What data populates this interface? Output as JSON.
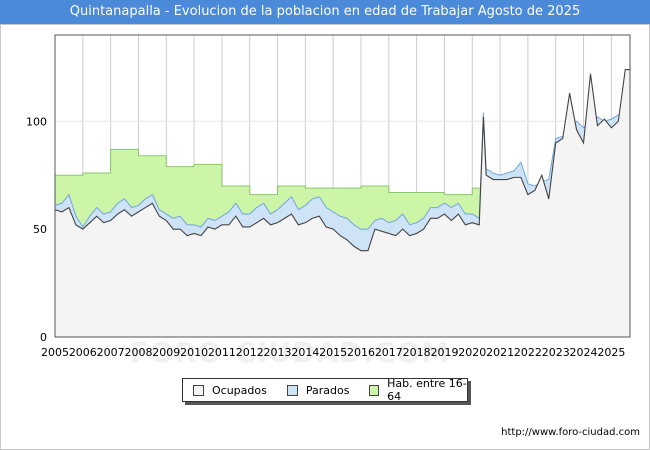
{
  "title": "Quintanapalla - Evolucion de la poblacion en edad de Trabajar Agosto de 2025",
  "source": "http://www.foro-ciudad.com",
  "watermark": "FORO-CIUDAD.COM",
  "colors": {
    "header": "#4a8ad8",
    "hab_fill": "#ccf5a8",
    "hab_line": "#8bc56f",
    "parados_fill": "#cfe3f7",
    "parados_line": "#6ea6e2",
    "ocupados_fill": "#f4f4f4",
    "ocupados_line": "#444444",
    "grid": "#cccccc"
  },
  "chart_data": {
    "type": "area",
    "title": "Quintanapalla - Evolucion de la poblacion en edad de Trabajar Agosto de 2025",
    "xlim": [
      2005,
      2025.67
    ],
    "ylim": [
      0,
      140
    ],
    "yticks": [
      0,
      50,
      100
    ],
    "xticks": [
      "2005",
      "2006",
      "2007",
      "2008",
      "2009",
      "2010",
      "2011",
      "2012",
      "2013",
      "2014",
      "2015",
      "2016",
      "2017",
      "2018",
      "2019",
      "2020",
      "2021",
      "2022",
      "2023",
      "2024",
      "2025"
    ],
    "legend": [
      "Ocupados",
      "Parados",
      "Hab. entre 16-64"
    ],
    "legend_position": "bottom-center",
    "series": [
      {
        "name": "Hab. entre 16-64",
        "step": true,
        "x": [
          2005,
          2006,
          2007,
          2008,
          2009,
          2010,
          2011,
          2012,
          2013,
          2014,
          2015,
          2016,
          2017,
          2018,
          2019,
          2020,
          2020.3,
          2020.6,
          2021,
          2022,
          2023,
          2024,
          2025
        ],
        "values": [
          75,
          76,
          87,
          84,
          79,
          80,
          70,
          66,
          70,
          69,
          69,
          70,
          67,
          67,
          66,
          69,
          69,
          null,
          null,
          null,
          null,
          null,
          null
        ]
      },
      {
        "name": "Parados",
        "x": [
          2005,
          2005.25,
          2005.5,
          2005.75,
          2006,
          2006.25,
          2006.5,
          2006.75,
          2007,
          2007.25,
          2007.5,
          2007.75,
          2008,
          2008.25,
          2008.5,
          2008.75,
          2009,
          2009.25,
          2009.5,
          2009.75,
          2010,
          2010.25,
          2010.5,
          2010.75,
          2011,
          2011.25,
          2011.5,
          2011.75,
          2012,
          2012.25,
          2012.5,
          2012.75,
          2013,
          2013.25,
          2013.5,
          2013.75,
          2014,
          2014.25,
          2014.5,
          2014.75,
          2015,
          2015.25,
          2015.5,
          2015.75,
          2016,
          2016.25,
          2016.5,
          2016.75,
          2017,
          2017.25,
          2017.5,
          2017.75,
          2018,
          2018.25,
          2018.5,
          2018.75,
          2019,
          2019.25,
          2019.5,
          2019.75,
          2020,
          2020.25,
          2020.4,
          2020.5,
          2020.75,
          2021,
          2021.25,
          2021.5,
          2021.75,
          2022,
          2022.25,
          2022.5,
          2022.75,
          2023,
          2023.25,
          2023.5,
          2023.75,
          2024,
          2024.25,
          2024.5,
          2024.75,
          2025,
          2025.25,
          2025.5,
          2025.67
        ],
        "values": [
          61,
          62,
          66,
          56,
          51,
          56,
          60,
          57,
          58,
          62,
          64,
          60,
          61,
          64,
          66,
          59,
          57,
          55,
          56,
          52,
          52,
          51,
          55,
          54,
          56,
          58,
          62,
          57,
          57,
          60,
          62,
          57,
          59,
          62,
          65,
          59,
          61,
          64,
          65,
          60,
          58,
          56,
          55,
          52,
          50,
          50,
          54,
          55,
          53,
          54,
          57,
          52,
          53,
          55,
          60,
          60,
          62,
          60,
          62,
          57,
          57,
          55,
          104,
          78,
          76,
          75,
          76,
          77,
          81,
          71,
          70,
          72,
          73,
          92,
          93,
          97,
          100,
          97,
          100,
          102,
          100,
          101,
          103,
          104,
          108
        ]
      },
      {
        "name": "Ocupados",
        "x": [
          2005,
          2005.25,
          2005.5,
          2005.75,
          2006,
          2006.25,
          2006.5,
          2006.75,
          2007,
          2007.25,
          2007.5,
          2007.75,
          2008,
          2008.25,
          2008.5,
          2008.75,
          2009,
          2009.25,
          2009.5,
          2009.75,
          2010,
          2010.25,
          2010.5,
          2010.75,
          2011,
          2011.25,
          2011.5,
          2011.75,
          2012,
          2012.25,
          2012.5,
          2012.75,
          2013,
          2013.25,
          2013.5,
          2013.75,
          2014,
          2014.25,
          2014.5,
          2014.75,
          2015,
          2015.25,
          2015.5,
          2015.75,
          2016,
          2016.25,
          2016.5,
          2016.75,
          2017,
          2017.25,
          2017.5,
          2017.75,
          2018,
          2018.25,
          2018.5,
          2018.75,
          2019,
          2019.25,
          2019.5,
          2019.75,
          2020,
          2020.25,
          2020.4,
          2020.5,
          2020.75,
          2021,
          2021.25,
          2021.5,
          2021.75,
          2022,
          2022.25,
          2022.5,
          2022.75,
          2023,
          2023.25,
          2023.5,
          2023.75,
          2024,
          2024.25,
          2024.5,
          2024.75,
          2025,
          2025.25,
          2025.5,
          2025.67
        ],
        "values": [
          59,
          58,
          60,
          52,
          50,
          53,
          56,
          53,
          54,
          57,
          59,
          56,
          58,
          60,
          62,
          56,
          54,
          50,
          50,
          47,
          48,
          47,
          51,
          50,
          52,
          52,
          56,
          51,
          51,
          53,
          55,
          52,
          53,
          55,
          57,
          52,
          53,
          55,
          56,
          51,
          50,
          47,
          45,
          42,
          40,
          40,
          50,
          49,
          48,
          47,
          50,
          47,
          48,
          50,
          55,
          55,
          57,
          54,
          57,
          52,
          53,
          52,
          102,
          75,
          73,
          73,
          73,
          74,
          74,
          66,
          68,
          75,
          64,
          90,
          92,
          113,
          96,
          90,
          122,
          98,
          101,
          97,
          100,
          124,
          124
        ]
      }
    ]
  }
}
